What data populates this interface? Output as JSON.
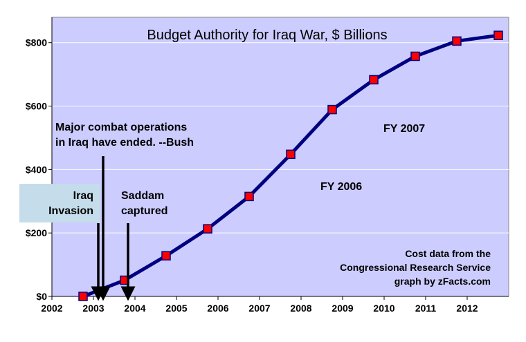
{
  "chart_data": {
    "type": "line",
    "title": "Budget Authority for Iraq War, $ Billions",
    "xlabel": "",
    "ylabel": "",
    "xlim": [
      2002,
      2013
    ],
    "ylim": [
      0,
      880
    ],
    "x_ticks": [
      2002,
      2003,
      2004,
      2005,
      2006,
      2007,
      2008,
      2009,
      2010,
      2011,
      2012
    ],
    "x_tick_labels": [
      "2002",
      "2003",
      "2004",
      "2005",
      "2006",
      "2007",
      "2008",
      "2009",
      "2010",
      "2011",
      "2012"
    ],
    "y_ticks": [
      0,
      200,
      400,
      600,
      800
    ],
    "y_tick_labels": [
      "$0",
      "$200",
      "$400",
      "$600",
      "$800"
    ],
    "grid": "horizontal",
    "series": [
      {
        "x": [
          2002.75,
          2003.75,
          2004.75,
          2005.75,
          2006.75,
          2007.75,
          2008.75,
          2009.75,
          2010.75,
          2011.75,
          2012.75
        ],
        "values": [
          0,
          51,
          128,
          213,
          315,
          448,
          589,
          683,
          757,
          805,
          823
        ]
      }
    ],
    "colors": {
      "plot_bg": "#ccccff",
      "line": "#000080",
      "marker": "#ff0000",
      "grid": "#ffffff",
      "invasion_box": "#c5dcea"
    },
    "annotations": {
      "quote_line1": "Major combat operations",
      "quote_line2": "in Iraq have ended. --Bush",
      "invasion_line1": "Iraq",
      "invasion_line2": "Invasion",
      "saddam_line1": "Saddam",
      "saddam_line2": "captured",
      "fy2007": "FY 2007",
      "fy2006": "FY 2006",
      "credit_line1": "Cost data from the",
      "credit_line2": "Congressional Research Service",
      "credit_line3": "graph by  zFacts.com"
    }
  }
}
